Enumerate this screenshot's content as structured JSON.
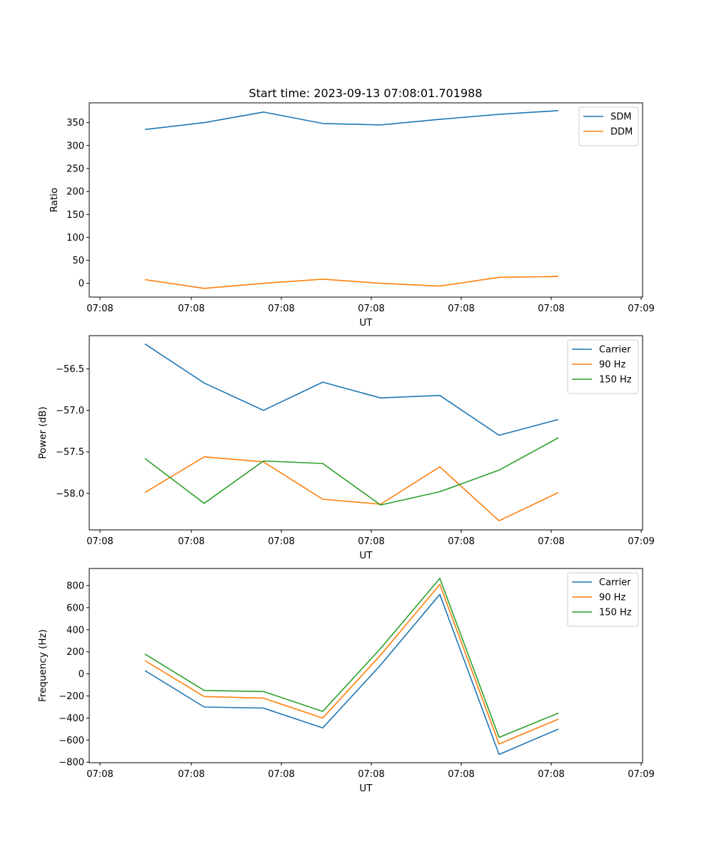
{
  "figure_title": "Start time: 2023-09-13 07:08:01.701988",
  "chart_data": [
    {
      "type": "line",
      "title": "Start time: 2023-09-13 07:08:01.701988",
      "xlabel": "UT",
      "ylabel": "Ratio",
      "x_tick_labels": [
        "07:08",
        "07:08",
        "07:08",
        "07:08",
        "07:08",
        "07:08",
        "07:09"
      ],
      "y_ticks": [
        0,
        50,
        100,
        150,
        200,
        250,
        300,
        350
      ],
      "ylim": [
        -30,
        393
      ],
      "legend_position": "top-right",
      "series": [
        {
          "name": "SDM",
          "color": "#1f77b4",
          "values": [
            335,
            350,
            373,
            348,
            345,
            357,
            368,
            376
          ]
        },
        {
          "name": "DDM",
          "color": "#ff7f0e",
          "values": [
            8,
            -11,
            0,
            9,
            0,
            -6,
            13,
            15
          ]
        }
      ]
    },
    {
      "type": "line",
      "title": "",
      "xlabel": "UT",
      "ylabel": "Power (dB)",
      "x_tick_labels": [
        "07:08",
        "07:08",
        "07:08",
        "07:08",
        "07:08",
        "07:08",
        "07:09"
      ],
      "y_ticks": [
        -58.0,
        -57.5,
        -57.0,
        -56.5
      ],
      "y_tick_labels": [
        "−58.0",
        "−57.5",
        "−57.0",
        "−56.5"
      ],
      "ylim": [
        -58.44,
        -56.1
      ],
      "legend_position": "top-right",
      "series": [
        {
          "name": "Carrier",
          "color": "#1f77b4",
          "values": [
            -56.2,
            -56.67,
            -57.0,
            -56.66,
            -56.85,
            -56.82,
            -57.3,
            -57.11
          ]
        },
        {
          "name": "90 Hz",
          "color": "#ff7f0e",
          "values": [
            -57.99,
            -57.56,
            -57.62,
            -58.07,
            -58.13,
            -57.68,
            -58.33,
            -57.99
          ]
        },
        {
          "name": "150 Hz",
          "color": "#2ca02c",
          "values": [
            -57.58,
            -58.12,
            -57.61,
            -57.64,
            -58.14,
            -57.98,
            -57.72,
            -57.33
          ]
        }
      ]
    },
    {
      "type": "line",
      "title": "",
      "xlabel": "UT",
      "ylabel": "Frequency (Hz)",
      "x_tick_labels": [
        "07:08",
        "07:08",
        "07:08",
        "07:08",
        "07:08",
        "07:08",
        "07:09"
      ],
      "y_ticks": [
        -800,
        -600,
        -400,
        -200,
        0,
        200,
        400,
        600,
        800
      ],
      "y_tick_labels": [
        "−800",
        "−600",
        "−400",
        "−200",
        "0",
        "200",
        "400",
        "600",
        "800"
      ],
      "ylim": [
        -805,
        955
      ],
      "legend_position": "top-right",
      "series": [
        {
          "name": "Carrier",
          "color": "#1f77b4",
          "values": [
            30,
            -300,
            -310,
            -490,
            80,
            720,
            -730,
            -500
          ]
        },
        {
          "name": "90 Hz",
          "color": "#ff7f0e",
          "values": [
            120,
            -205,
            -220,
            -400,
            170,
            810,
            -635,
            -410
          ]
        },
        {
          "name": "150 Hz",
          "color": "#2ca02c",
          "values": [
            180,
            -150,
            -160,
            -340,
            230,
            865,
            -575,
            -355
          ]
        }
      ]
    }
  ]
}
